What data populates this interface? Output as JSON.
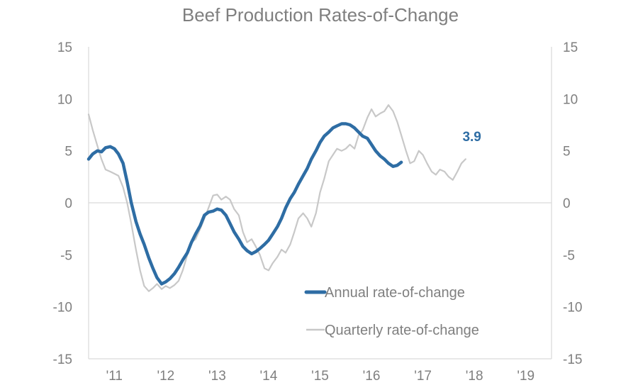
{
  "chart_data": {
    "type": "line",
    "title": "Beef Production Rates-of-Change",
    "xlabel": "",
    "ylabel": "",
    "x_range": [
      2010.5,
      2019.5
    ],
    "ylim": [
      -15,
      15
    ],
    "y_ticks": [
      "15",
      "10",
      "5",
      "0",
      "-5",
      "-10",
      "-15"
    ],
    "x_ticks": [
      {
        "label": "'11",
        "x": 2011.0
      },
      {
        "label": "'12",
        "x": 2012.0
      },
      {
        "label": "'13",
        "x": 2013.0
      },
      {
        "label": "'14",
        "x": 2014.0
      },
      {
        "label": "'15",
        "x": 2015.0
      },
      {
        "label": "'16",
        "x": 2016.0
      },
      {
        "label": "'17",
        "x": 2017.0
      },
      {
        "label": "'18",
        "x": 2018.0
      },
      {
        "label": "'19",
        "x": 2019.0
      }
    ],
    "grid": false,
    "legend_position": "bottom-right",
    "annotation": {
      "text": "3.9",
      "series": "Annual rate-of-change",
      "x": 2017.88,
      "y": 3.9
    },
    "series": [
      {
        "name": "Quarterly rate-of-change",
        "color": "#c8c8c8",
        "points": [
          [
            2010.5,
            8.5
          ],
          [
            2010.58,
            7.0
          ],
          [
            2010.67,
            5.5
          ],
          [
            2010.75,
            4.2
          ],
          [
            2010.83,
            3.2
          ],
          [
            2010.92,
            3.0
          ],
          [
            2011.0,
            2.8
          ],
          [
            2011.08,
            2.6
          ],
          [
            2011.17,
            1.5
          ],
          [
            2011.25,
            0.0
          ],
          [
            2011.33,
            -2.0
          ],
          [
            2011.42,
            -4.5
          ],
          [
            2011.5,
            -6.5
          ],
          [
            2011.58,
            -8.0
          ],
          [
            2011.67,
            -8.5
          ],
          [
            2011.75,
            -8.2
          ],
          [
            2011.83,
            -7.8
          ],
          [
            2011.92,
            -8.3
          ],
          [
            2012.0,
            -8.0
          ],
          [
            2012.08,
            -8.2
          ],
          [
            2012.17,
            -7.9
          ],
          [
            2012.25,
            -7.5
          ],
          [
            2012.33,
            -6.5
          ],
          [
            2012.42,
            -5.0
          ],
          [
            2012.5,
            -3.8
          ],
          [
            2012.58,
            -3.5
          ],
          [
            2012.67,
            -2.5
          ],
          [
            2012.75,
            -1.5
          ],
          [
            2012.83,
            -0.5
          ],
          [
            2012.92,
            0.7
          ],
          [
            2013.0,
            0.8
          ],
          [
            2013.08,
            0.3
          ],
          [
            2013.17,
            0.6
          ],
          [
            2013.25,
            0.3
          ],
          [
            2013.33,
            -0.6
          ],
          [
            2013.42,
            -1.2
          ],
          [
            2013.5,
            -2.8
          ],
          [
            2013.58,
            -3.8
          ],
          [
            2013.67,
            -3.5
          ],
          [
            2013.75,
            -4.2
          ],
          [
            2013.83,
            -5.0
          ],
          [
            2013.92,
            -6.3
          ],
          [
            2014.0,
            -6.5
          ],
          [
            2014.08,
            -5.8
          ],
          [
            2014.17,
            -5.2
          ],
          [
            2014.25,
            -4.5
          ],
          [
            2014.33,
            -4.8
          ],
          [
            2014.42,
            -4.0
          ],
          [
            2014.5,
            -2.8
          ],
          [
            2014.58,
            -1.5
          ],
          [
            2014.67,
            -1.0
          ],
          [
            2014.75,
            -1.5
          ],
          [
            2014.83,
            -2.3
          ],
          [
            2014.92,
            -1.0
          ],
          [
            2015.0,
            1.0
          ],
          [
            2015.08,
            2.3
          ],
          [
            2015.17,
            4.0
          ],
          [
            2015.25,
            4.6
          ],
          [
            2015.33,
            5.2
          ],
          [
            2015.42,
            5.0
          ],
          [
            2015.5,
            5.2
          ],
          [
            2015.58,
            5.6
          ],
          [
            2015.67,
            5.2
          ],
          [
            2015.75,
            6.5
          ],
          [
            2015.83,
            7.0
          ],
          [
            2015.92,
            8.2
          ],
          [
            2016.0,
            9.0
          ],
          [
            2016.08,
            8.3
          ],
          [
            2016.17,
            8.6
          ],
          [
            2016.25,
            8.8
          ],
          [
            2016.33,
            9.4
          ],
          [
            2016.42,
            8.8
          ],
          [
            2016.5,
            7.8
          ],
          [
            2016.58,
            6.5
          ],
          [
            2016.67,
            5.0
          ],
          [
            2016.75,
            3.8
          ],
          [
            2016.83,
            4.0
          ],
          [
            2016.92,
            5.0
          ],
          [
            2017.0,
            4.6
          ],
          [
            2017.08,
            3.8
          ],
          [
            2017.17,
            3.0
          ],
          [
            2017.25,
            2.7
          ],
          [
            2017.33,
            3.2
          ],
          [
            2017.42,
            3.0
          ],
          [
            2017.5,
            2.5
          ],
          [
            2017.58,
            2.2
          ],
          [
            2017.67,
            3.0
          ],
          [
            2017.75,
            3.8
          ],
          [
            2017.83,
            4.2
          ]
        ]
      },
      {
        "name": "Annual rate-of-change",
        "color": "#2e6da4",
        "points": [
          [
            2010.5,
            4.2
          ],
          [
            2010.58,
            4.7
          ],
          [
            2010.67,
            5.0
          ],
          [
            2010.75,
            4.9
          ],
          [
            2010.83,
            5.3
          ],
          [
            2010.92,
            5.4
          ],
          [
            2011.0,
            5.2
          ],
          [
            2011.08,
            4.7
          ],
          [
            2011.17,
            3.8
          ],
          [
            2011.25,
            2.0
          ],
          [
            2011.33,
            0.0
          ],
          [
            2011.42,
            -1.8
          ],
          [
            2011.5,
            -3.0
          ],
          [
            2011.58,
            -4.0
          ],
          [
            2011.67,
            -5.3
          ],
          [
            2011.75,
            -6.3
          ],
          [
            2011.83,
            -7.2
          ],
          [
            2011.92,
            -7.8
          ],
          [
            2012.0,
            -7.6
          ],
          [
            2012.08,
            -7.3
          ],
          [
            2012.17,
            -6.8
          ],
          [
            2012.25,
            -6.2
          ],
          [
            2012.33,
            -5.5
          ],
          [
            2012.42,
            -4.8
          ],
          [
            2012.5,
            -3.8
          ],
          [
            2012.58,
            -3.0
          ],
          [
            2012.67,
            -2.2
          ],
          [
            2012.75,
            -1.2
          ],
          [
            2012.83,
            -0.9
          ],
          [
            2012.92,
            -0.8
          ],
          [
            2013.0,
            -0.6
          ],
          [
            2013.08,
            -0.7
          ],
          [
            2013.17,
            -1.2
          ],
          [
            2013.25,
            -2.0
          ],
          [
            2013.33,
            -2.8
          ],
          [
            2013.42,
            -3.5
          ],
          [
            2013.5,
            -4.2
          ],
          [
            2013.58,
            -4.6
          ],
          [
            2013.67,
            -4.9
          ],
          [
            2013.75,
            -4.7
          ],
          [
            2013.83,
            -4.4
          ],
          [
            2013.92,
            -4.0
          ],
          [
            2014.0,
            -3.6
          ],
          [
            2014.08,
            -3.0
          ],
          [
            2014.17,
            -2.3
          ],
          [
            2014.25,
            -1.5
          ],
          [
            2014.33,
            -0.5
          ],
          [
            2014.42,
            0.4
          ],
          [
            2014.5,
            1.0
          ],
          [
            2014.58,
            1.8
          ],
          [
            2014.67,
            2.6
          ],
          [
            2014.75,
            3.3
          ],
          [
            2014.83,
            4.2
          ],
          [
            2014.92,
            5.0
          ],
          [
            2015.0,
            5.8
          ],
          [
            2015.08,
            6.4
          ],
          [
            2015.17,
            6.8
          ],
          [
            2015.25,
            7.2
          ],
          [
            2015.33,
            7.4
          ],
          [
            2015.42,
            7.6
          ],
          [
            2015.5,
            7.6
          ],
          [
            2015.58,
            7.5
          ],
          [
            2015.67,
            7.2
          ],
          [
            2015.75,
            6.8
          ],
          [
            2015.83,
            6.4
          ],
          [
            2015.92,
            6.2
          ],
          [
            2016.0,
            5.6
          ],
          [
            2016.08,
            5.0
          ],
          [
            2016.17,
            4.5
          ],
          [
            2016.25,
            4.2
          ],
          [
            2016.33,
            3.8
          ],
          [
            2016.42,
            3.5
          ],
          [
            2016.5,
            3.6
          ],
          [
            2016.58,
            3.9
          ]
        ]
      }
    ]
  }
}
